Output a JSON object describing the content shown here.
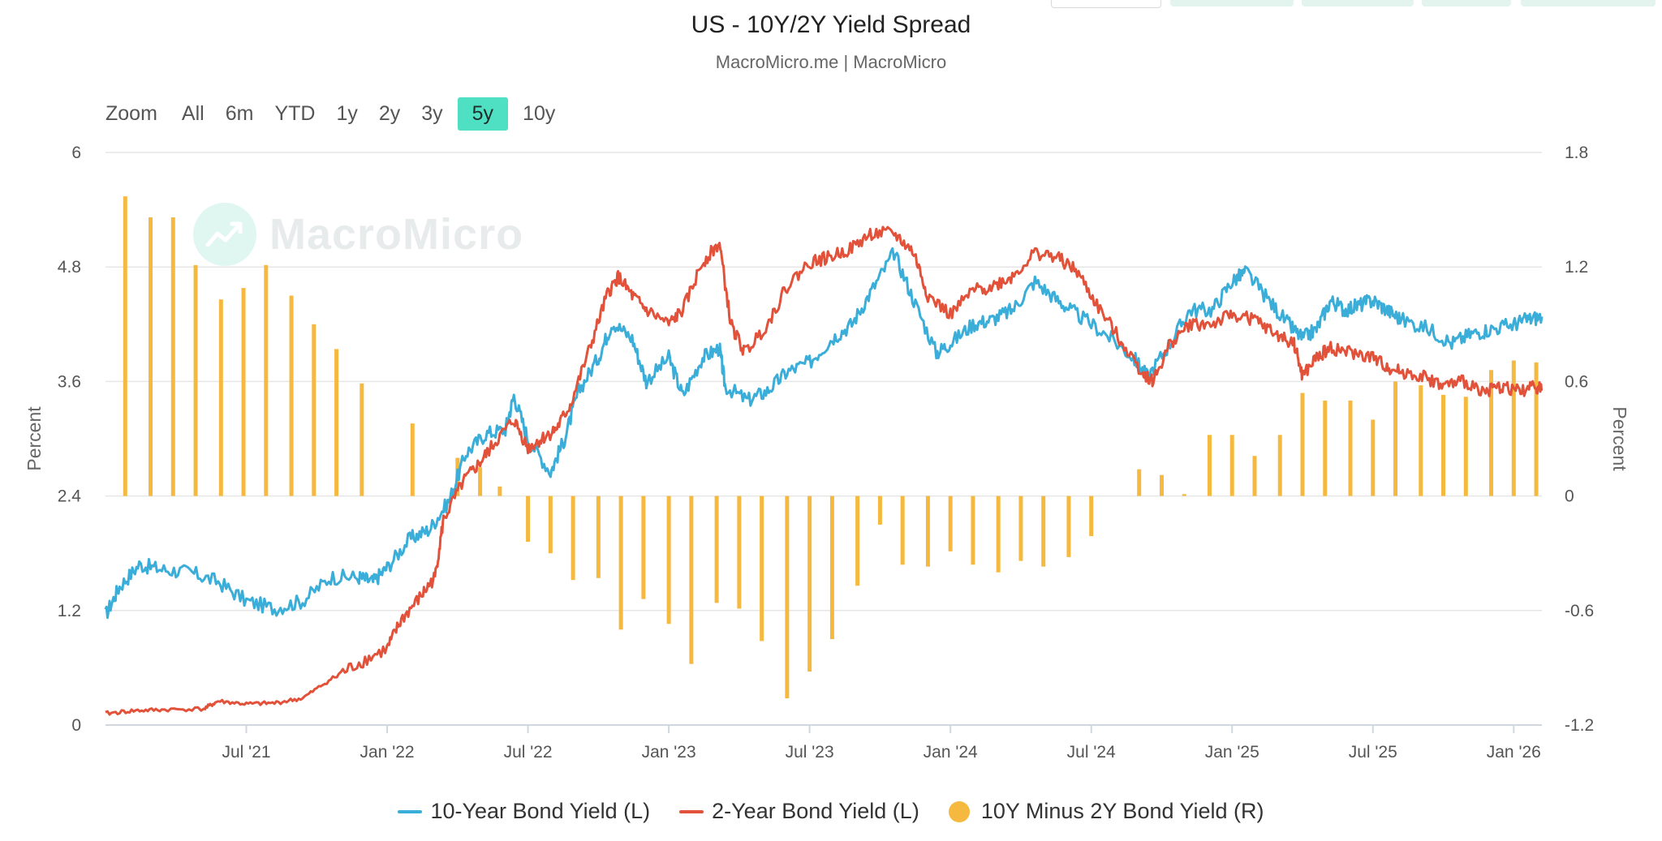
{
  "title": "US - 10Y/2Y Yield Spread",
  "subtitle": "MacroMicro.me | MacroMicro",
  "watermark": {
    "text": "MacroMicro",
    "icon": "macromicro-logo-icon"
  },
  "zoom": {
    "label": "Zoom",
    "buttons": [
      "All",
      "6m",
      "YTD",
      "1y",
      "2y",
      "3y",
      "5y",
      "10y"
    ],
    "active": "5y"
  },
  "colors": {
    "ten_year": "#3aaed8",
    "two_year": "#e2523a",
    "spread": "#f5b93f",
    "grid": "#e6e6e6",
    "zoom_active": "#4fdfc2"
  },
  "legend": [
    {
      "label": "10-Year Bond Yield (L)",
      "type": "line",
      "color": "#3aaed8"
    },
    {
      "label": "2-Year Bond Yield (L)",
      "type": "line",
      "color": "#e2523a"
    },
    {
      "label": "10Y Minus 2Y Bond Yield (R)",
      "type": "dot",
      "color": "#f5b93f"
    }
  ],
  "chart_data": {
    "type": "line",
    "title": "US - 10Y/2Y Yield Spread",
    "ylabel_left": "Percent",
    "ylabel_right": "Percent",
    "xlim": [
      2021.0,
      2026.1
    ],
    "ylim_left": [
      0,
      6
    ],
    "ylim_right": [
      -1.2,
      1.8
    ],
    "yticks_left": [
      "0",
      "1.2",
      "2.4",
      "3.6",
      "4.8",
      "6"
    ],
    "yticks_right": [
      "-1.2",
      "-0.6",
      "0",
      "0.6",
      "1.2",
      "1.8"
    ],
    "xticks": [
      {
        "label": "Jul '21",
        "t": 2021.5
      },
      {
        "label": "Jan '22",
        "t": 2022.0
      },
      {
        "label": "Jul '22",
        "t": 2022.5
      },
      {
        "label": "Jan '23",
        "t": 2023.0
      },
      {
        "label": "Jul '23",
        "t": 2023.5
      },
      {
        "label": "Jan '24",
        "t": 2024.0
      },
      {
        "label": "Jul '24",
        "t": 2024.5
      },
      {
        "label": "Jan '25",
        "t": 2025.0
      },
      {
        "label": "Jul '25",
        "t": 2025.5
      },
      {
        "label": "Jan '26",
        "t": 2026.0
      }
    ],
    "grid": true,
    "legend_position": "bottom-center",
    "series": [
      {
        "name": "10-Year Bond Yield (L)",
        "axis": "left",
        "type": "line",
        "points": [
          [
            2021.0,
            1.15
          ],
          [
            2021.05,
            1.45
          ],
          [
            2021.12,
            1.68
          ],
          [
            2021.2,
            1.63
          ],
          [
            2021.3,
            1.6
          ],
          [
            2021.4,
            1.5
          ],
          [
            2021.5,
            1.3
          ],
          [
            2021.6,
            1.22
          ],
          [
            2021.7,
            1.3
          ],
          [
            2021.8,
            1.55
          ],
          [
            2021.9,
            1.55
          ],
          [
            2021.95,
            1.5
          ],
          [
            2022.0,
            1.65
          ],
          [
            2022.08,
            1.95
          ],
          [
            2022.15,
            2.05
          ],
          [
            2022.22,
            2.35
          ],
          [
            2022.28,
            2.85
          ],
          [
            2022.35,
            3.05
          ],
          [
            2022.42,
            3.1
          ],
          [
            2022.45,
            3.45
          ],
          [
            2022.5,
            3.0
          ],
          [
            2022.58,
            2.65
          ],
          [
            2022.63,
            3.0
          ],
          [
            2022.68,
            3.5
          ],
          [
            2022.75,
            3.85
          ],
          [
            2022.8,
            4.22
          ],
          [
            2022.87,
            4.05
          ],
          [
            2022.92,
            3.6
          ],
          [
            2023.0,
            3.85
          ],
          [
            2023.05,
            3.45
          ],
          [
            2023.12,
            3.85
          ],
          [
            2023.18,
            3.95
          ],
          [
            2023.2,
            3.55
          ],
          [
            2023.28,
            3.4
          ],
          [
            2023.35,
            3.5
          ],
          [
            2023.42,
            3.7
          ],
          [
            2023.5,
            3.8
          ],
          [
            2023.58,
            4.05
          ],
          [
            2023.65,
            4.2
          ],
          [
            2023.72,
            4.55
          ],
          [
            2023.8,
            4.95
          ],
          [
            2023.87,
            4.45
          ],
          [
            2023.95,
            3.9
          ],
          [
            2024.0,
            4.0
          ],
          [
            2024.08,
            4.2
          ],
          [
            2024.15,
            4.25
          ],
          [
            2024.22,
            4.35
          ],
          [
            2024.3,
            4.65
          ],
          [
            2024.38,
            4.45
          ],
          [
            2024.45,
            4.3
          ],
          [
            2024.55,
            4.1
          ],
          [
            2024.65,
            3.85
          ],
          [
            2024.7,
            3.65
          ],
          [
            2024.78,
            4.0
          ],
          [
            2024.85,
            4.35
          ],
          [
            2024.93,
            4.35
          ],
          [
            2025.0,
            4.65
          ],
          [
            2025.05,
            4.75
          ],
          [
            2025.13,
            4.45
          ],
          [
            2025.2,
            4.2
          ],
          [
            2025.25,
            4.05
          ],
          [
            2025.3,
            4.15
          ],
          [
            2025.35,
            4.45
          ],
          [
            2025.4,
            4.35
          ],
          [
            2025.45,
            4.4
          ],
          [
            2025.5,
            4.45
          ],
          [
            2025.55,
            4.35
          ],
          [
            2025.6,
            4.25
          ],
          [
            2025.7,
            4.15
          ],
          [
            2025.78,
            4.0
          ],
          [
            2025.85,
            4.1
          ],
          [
            2025.92,
            4.15
          ],
          [
            2026.0,
            4.2
          ],
          [
            2026.05,
            4.25
          ],
          [
            2026.1,
            4.28
          ]
        ]
      },
      {
        "name": "2-Year Bond Yield (L)",
        "axis": "left",
        "type": "line",
        "points": [
          [
            2021.0,
            0.12
          ],
          [
            2021.1,
            0.15
          ],
          [
            2021.2,
            0.16
          ],
          [
            2021.35,
            0.17
          ],
          [
            2021.4,
            0.25
          ],
          [
            2021.5,
            0.22
          ],
          [
            2021.6,
            0.23
          ],
          [
            2021.7,
            0.28
          ],
          [
            2021.8,
            0.48
          ],
          [
            2021.9,
            0.65
          ],
          [
            2022.0,
            0.8
          ],
          [
            2022.05,
            1.1
          ],
          [
            2022.12,
            1.35
          ],
          [
            2022.17,
            1.55
          ],
          [
            2022.2,
            2.15
          ],
          [
            2022.27,
            2.55
          ],
          [
            2022.33,
            2.75
          ],
          [
            2022.38,
            2.95
          ],
          [
            2022.45,
            3.2
          ],
          [
            2022.5,
            2.9
          ],
          [
            2022.55,
            3.0
          ],
          [
            2022.6,
            3.1
          ],
          [
            2022.65,
            3.35
          ],
          [
            2022.72,
            3.95
          ],
          [
            2022.78,
            4.5
          ],
          [
            2022.82,
            4.7
          ],
          [
            2022.87,
            4.5
          ],
          [
            2022.92,
            4.35
          ],
          [
            2023.0,
            4.2
          ],
          [
            2023.05,
            4.35
          ],
          [
            2023.12,
            4.85
          ],
          [
            2023.18,
            5.05
          ],
          [
            2023.22,
            4.2
          ],
          [
            2023.27,
            3.9
          ],
          [
            2023.35,
            4.2
          ],
          [
            2023.42,
            4.6
          ],
          [
            2023.5,
            4.85
          ],
          [
            2023.57,
            4.9
          ],
          [
            2023.65,
            5.0
          ],
          [
            2023.72,
            5.15
          ],
          [
            2023.8,
            5.15
          ],
          [
            2023.87,
            4.95
          ],
          [
            2023.92,
            4.5
          ],
          [
            2024.0,
            4.3
          ],
          [
            2024.08,
            4.55
          ],
          [
            2024.15,
            4.6
          ],
          [
            2024.22,
            4.7
          ],
          [
            2024.3,
            4.95
          ],
          [
            2024.38,
            4.9
          ],
          [
            2024.45,
            4.75
          ],
          [
            2024.52,
            4.4
          ],
          [
            2024.6,
            4.05
          ],
          [
            2024.68,
            3.7
          ],
          [
            2024.72,
            3.6
          ],
          [
            2024.78,
            4.0
          ],
          [
            2024.85,
            4.2
          ],
          [
            2024.93,
            4.2
          ],
          [
            2025.0,
            4.3
          ],
          [
            2025.08,
            4.25
          ],
          [
            2025.15,
            4.1
          ],
          [
            2025.22,
            4.0
          ],
          [
            2025.25,
            3.65
          ],
          [
            2025.3,
            3.85
          ],
          [
            2025.35,
            3.95
          ],
          [
            2025.42,
            3.9
          ],
          [
            2025.5,
            3.85
          ],
          [
            2025.55,
            3.75
          ],
          [
            2025.6,
            3.7
          ],
          [
            2025.68,
            3.65
          ],
          [
            2025.75,
            3.55
          ],
          [
            2025.82,
            3.6
          ],
          [
            2025.9,
            3.5
          ],
          [
            2025.96,
            3.55
          ],
          [
            2026.02,
            3.5
          ],
          [
            2026.08,
            3.55
          ],
          [
            2026.1,
            3.52
          ]
        ]
      },
      {
        "name": "10Y Minus 2Y Bond Yield (R)",
        "axis": "right",
        "type": "bar",
        "points": [
          [
            2021.07,
            1.57
          ],
          [
            2021.16,
            1.46
          ],
          [
            2021.24,
            1.46
          ],
          [
            2021.32,
            1.21
          ],
          [
            2021.41,
            1.03
          ],
          [
            2021.49,
            1.09
          ],
          [
            2021.57,
            1.21
          ],
          [
            2021.66,
            1.05
          ],
          [
            2021.74,
            0.9
          ],
          [
            2021.82,
            0.77
          ],
          [
            2021.91,
            0.59
          ],
          [
            2022.09,
            0.38
          ],
          [
            2022.25,
            0.2
          ],
          [
            2022.33,
            0.15
          ],
          [
            2022.4,
            0.05
          ],
          [
            2022.5,
            -0.24
          ],
          [
            2022.58,
            -0.3
          ],
          [
            2022.66,
            -0.44
          ],
          [
            2022.75,
            -0.43
          ],
          [
            2022.83,
            -0.7
          ],
          [
            2022.91,
            -0.54
          ],
          [
            2023.0,
            -0.67
          ],
          [
            2023.08,
            -0.88
          ],
          [
            2023.17,
            -0.56
          ],
          [
            2023.25,
            -0.59
          ],
          [
            2023.33,
            -0.76
          ],
          [
            2023.42,
            -1.06
          ],
          [
            2023.5,
            -0.92
          ],
          [
            2023.58,
            -0.75
          ],
          [
            2023.67,
            -0.47
          ],
          [
            2023.75,
            -0.15
          ],
          [
            2023.83,
            -0.36
          ],
          [
            2023.92,
            -0.37
          ],
          [
            2024.0,
            -0.29
          ],
          [
            2024.08,
            -0.36
          ],
          [
            2024.17,
            -0.4
          ],
          [
            2024.25,
            -0.34
          ],
          [
            2024.33,
            -0.37
          ],
          [
            2024.42,
            -0.32
          ],
          [
            2024.5,
            -0.21
          ],
          [
            2024.67,
            0.14
          ],
          [
            2024.75,
            0.11
          ],
          [
            2024.83,
            0.01
          ],
          [
            2024.92,
            0.32
          ],
          [
            2025.0,
            0.32
          ],
          [
            2025.08,
            0.21
          ],
          [
            2025.17,
            0.32
          ],
          [
            2025.25,
            0.54
          ],
          [
            2025.33,
            0.5
          ],
          [
            2025.42,
            0.5
          ],
          [
            2025.5,
            0.4
          ],
          [
            2025.58,
            0.6
          ],
          [
            2025.67,
            0.58
          ],
          [
            2025.75,
            0.53
          ],
          [
            2025.83,
            0.52
          ],
          [
            2025.92,
            0.66
          ],
          [
            2026.0,
            0.71
          ],
          [
            2026.08,
            0.7
          ]
        ]
      }
    ]
  }
}
